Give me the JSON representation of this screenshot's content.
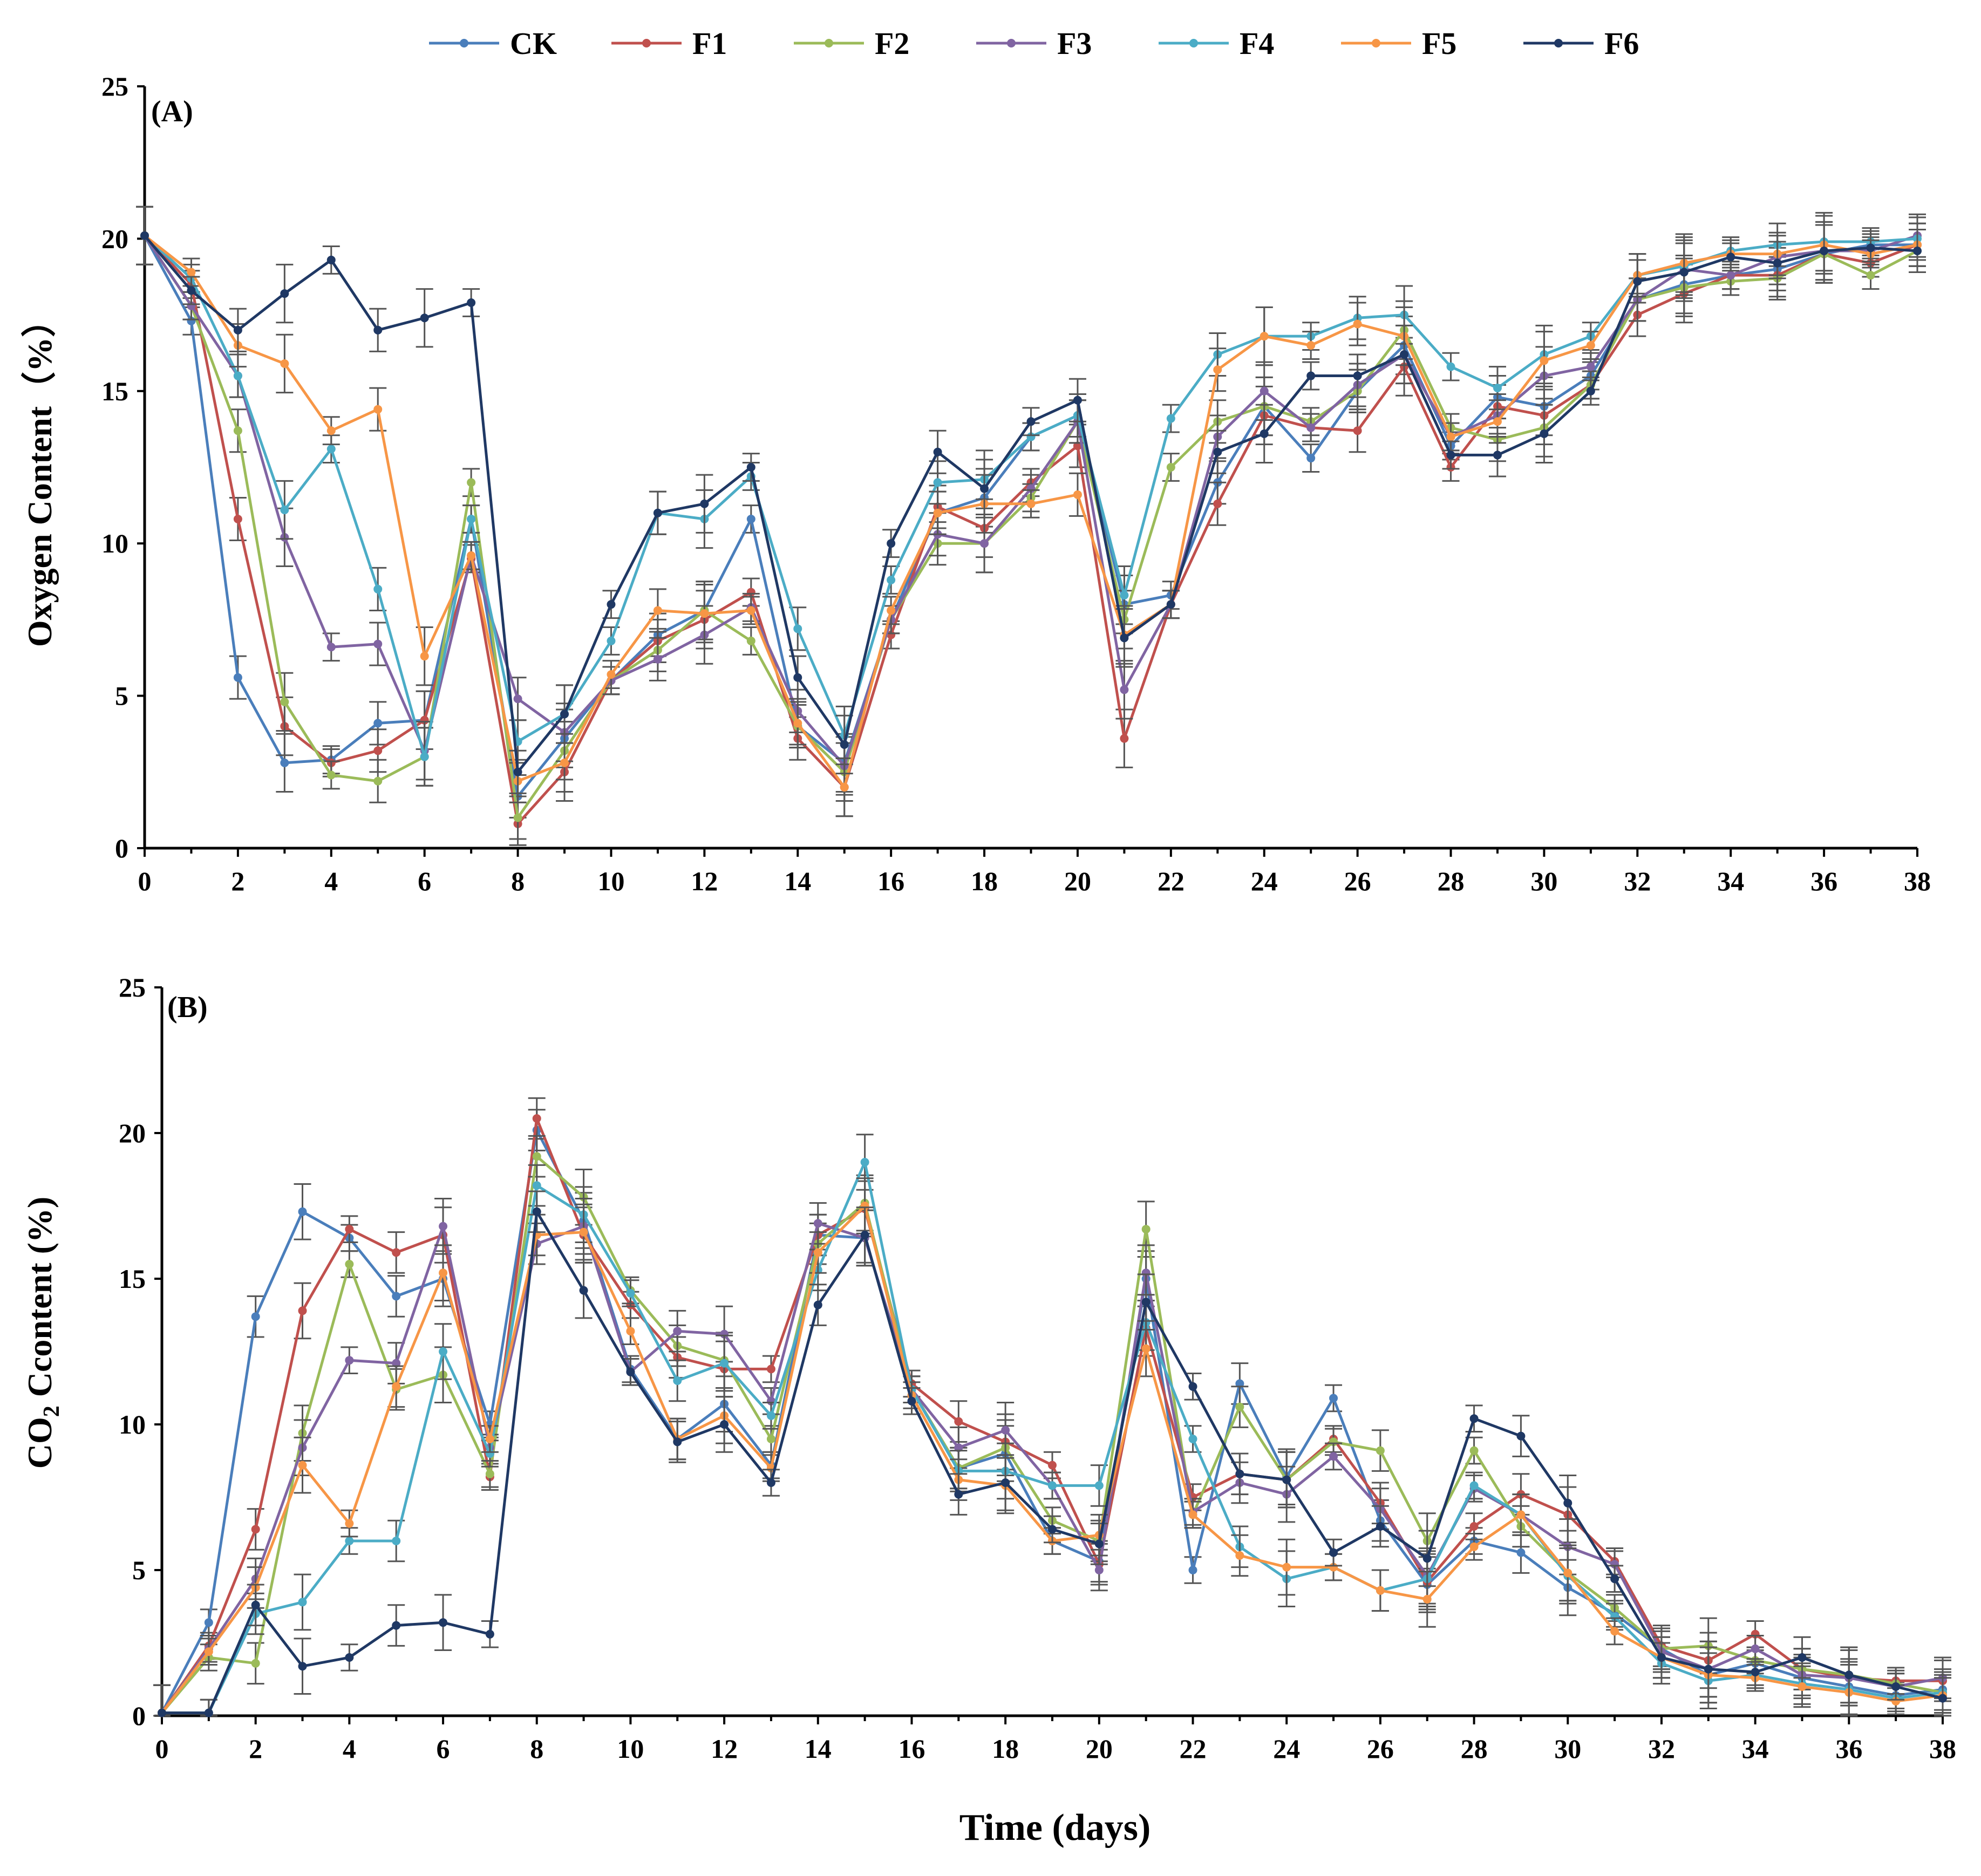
{
  "chart_data": [
    {
      "type": "line",
      "panel_label": "(A)",
      "ylabel": "Oxygen Content（%）",
      "xlabel": "",
      "xlim": [
        0,
        38
      ],
      "ylim": [
        0,
        25
      ],
      "x_ticks": [
        0,
        2,
        4,
        6,
        8,
        10,
        12,
        14,
        16,
        18,
        20,
        22,
        24,
        26,
        28,
        30,
        32,
        34,
        36,
        38
      ],
      "y_ticks": [
        0,
        5,
        10,
        15,
        20,
        25
      ],
      "x": [
        0,
        1,
        2,
        3,
        4,
        5,
        6,
        7,
        8,
        9,
        10,
        11,
        12,
        13,
        14,
        15,
        16,
        17,
        18,
        19,
        20,
        21,
        22,
        23,
        24,
        25,
        26,
        27,
        28,
        29,
        30,
        31,
        32,
        33,
        34,
        35,
        36,
        37,
        38
      ],
      "series": [
        {
          "name": "CK",
          "values": [
            20.1,
            17.3,
            5.6,
            2.8,
            2.9,
            4.1,
            4.2,
            10.8,
            1.7,
            3.6,
            5.5,
            7.0,
            7.8,
            10.8,
            4.0,
            2.8,
            7.5,
            11.0,
            11.5,
            13.5,
            14.2,
            8.0,
            8.3,
            12.0,
            14.5,
            12.8,
            15.0,
            16.5,
            13.2,
            14.8,
            14.5,
            15.5,
            18.0,
            18.5,
            18.8,
            19.0,
            19.5,
            19.8,
            19.8
          ]
        },
        {
          "name": "F1",
          "values": [
            20.1,
            18.5,
            10.8,
            4.0,
            2.8,
            3.2,
            4.2,
            9.5,
            0.8,
            2.5,
            5.5,
            6.8,
            7.5,
            8.4,
            3.6,
            2.0,
            7.0,
            11.2,
            10.5,
            12.0,
            13.2,
            3.6,
            8.0,
            11.3,
            14.2,
            13.8,
            13.7,
            15.8,
            12.5,
            14.5,
            14.2,
            15.2,
            17.5,
            18.2,
            18.8,
            18.8,
            19.5,
            19.2,
            19.8
          ]
        },
        {
          "name": "F2",
          "values": [
            20.1,
            17.8,
            13.7,
            4.8,
            2.4,
            2.2,
            3.0,
            12.0,
            1.0,
            3.2,
            5.5,
            6.5,
            7.8,
            6.8,
            4.0,
            2.5,
            7.5,
            10.0,
            10.0,
            11.5,
            14.0,
            7.5,
            12.5,
            14.0,
            14.5,
            14.0,
            15.0,
            17.0,
            13.8,
            13.4,
            13.8,
            15.2,
            18.0,
            18.4,
            18.6,
            18.7,
            19.5,
            18.8,
            19.6
          ]
        },
        {
          "name": "F3",
          "values": [
            20.1,
            17.8,
            15.5,
            10.2,
            6.6,
            6.7,
            3.2,
            9.6,
            4.9,
            3.8,
            5.5,
            6.2,
            7.0,
            7.9,
            4.5,
            2.7,
            7.5,
            10.3,
            10.0,
            11.8,
            14.0,
            5.2,
            8.0,
            13.5,
            15.0,
            13.8,
            15.2,
            16.2,
            13.5,
            14.2,
            15.5,
            15.8,
            18.0,
            19.0,
            18.8,
            19.4,
            19.6,
            19.6,
            20.1
          ]
        },
        {
          "name": "F4",
          "values": [
            20.1,
            18.7,
            15.5,
            11.1,
            13.1,
            8.5,
            3.0,
            10.8,
            3.5,
            4.4,
            6.8,
            11.0,
            10.8,
            12.2,
            7.2,
            3.7,
            8.8,
            12.0,
            12.1,
            13.5,
            14.2,
            8.3,
            14.1,
            16.2,
            16.8,
            16.8,
            17.4,
            17.5,
            15.8,
            15.1,
            16.2,
            16.8,
            18.8,
            19.1,
            19.6,
            19.8,
            19.9,
            19.9,
            20.0
          ]
        },
        {
          "name": "F5",
          "values": [
            20.1,
            18.9,
            16.5,
            15.9,
            13.7,
            14.4,
            6.3,
            9.6,
            2.2,
            2.8,
            5.7,
            7.8,
            7.7,
            7.8,
            4.1,
            2.0,
            7.8,
            11.0,
            11.3,
            11.3,
            11.6,
            7.0,
            8.0,
            15.7,
            16.8,
            16.5,
            17.2,
            16.8,
            13.5,
            14.0,
            16.0,
            16.5,
            18.8,
            19.2,
            19.5,
            19.5,
            19.8,
            19.5,
            19.8
          ]
        },
        {
          "name": "F6",
          "values": [
            20.1,
            18.3,
            17.0,
            18.2,
            19.3,
            17.0,
            17.4,
            17.9,
            2.5,
            4.4,
            8.0,
            11.0,
            11.3,
            12.5,
            5.6,
            3.4,
            10.0,
            13.0,
            11.8,
            14.0,
            14.7,
            6.9,
            8.0,
            13.0,
            13.6,
            15.5,
            15.5,
            16.2,
            12.9,
            12.9,
            13.6,
            15.0,
            18.6,
            18.9,
            19.4,
            19.2,
            19.6,
            19.7,
            19.6
          ]
        }
      ]
    },
    {
      "type": "line",
      "panel_label": "(B)",
      "ylabel_main": "CO",
      "ylabel_sub": "2",
      "ylabel_rest": " Ccontent  (%)",
      "xlabel": "Time (days)",
      "xlim": [
        0,
        38
      ],
      "ylim": [
        0,
        25
      ],
      "x_ticks": [
        0,
        2,
        4,
        6,
        8,
        10,
        12,
        14,
        16,
        18,
        20,
        22,
        24,
        26,
        28,
        30,
        32,
        34,
        36,
        38
      ],
      "y_ticks": [
        0,
        5,
        10,
        15,
        20,
        25
      ],
      "x": [
        0,
        1,
        2,
        3,
        4,
        5,
        6,
        7,
        8,
        9,
        10,
        11,
        12,
        13,
        14,
        15,
        16,
        17,
        18,
        19,
        20,
        21,
        22,
        23,
        24,
        25,
        26,
        27,
        28,
        29,
        30,
        31,
        32,
        33,
        34,
        35,
        36,
        37,
        38
      ],
      "series": [
        {
          "name": "CK",
          "values": [
            0.1,
            3.2,
            13.7,
            17.3,
            16.4,
            14.4,
            15.0,
            10.0,
            20.1,
            17.0,
            11.9,
            9.5,
            10.7,
            8.6,
            16.5,
            16.4,
            11.2,
            8.5,
            9.0,
            6.0,
            5.3,
            15.0,
            5.0,
            11.4,
            8.2,
            10.9,
            6.7,
            4.5,
            6.0,
            5.6,
            4.4,
            3.5,
            2.3,
            1.4,
            1.8,
            1.3,
            1.0,
            0.7,
            0.9
          ]
        },
        {
          "name": "F1",
          "values": [
            0.1,
            2.4,
            6.4,
            13.9,
            16.7,
            15.9,
            16.5,
            8.2,
            20.5,
            16.5,
            14.1,
            12.3,
            11.9,
            11.9,
            16.5,
            17.4,
            11.4,
            10.1,
            9.4,
            8.6,
            5.2,
            13.3,
            7.5,
            8.3,
            8.1,
            9.5,
            7.3,
            4.6,
            6.5,
            7.6,
            6.9,
            5.3,
            2.4,
            1.9,
            2.8,
            1.6,
            1.3,
            1.2,
            1.2
          ]
        },
        {
          "name": "F2",
          "values": [
            0.1,
            2.0,
            1.8,
            9.7,
            15.5,
            11.2,
            11.7,
            8.3,
            19.2,
            17.8,
            14.6,
            12.7,
            12.2,
            9.5,
            16.2,
            17.6,
            11.2,
            8.5,
            9.2,
            6.7,
            6.0,
            16.7,
            6.9,
            10.6,
            8.1,
            9.4,
            9.1,
            6.0,
            9.1,
            6.5,
            4.9,
            3.7,
            2.3,
            2.4,
            1.9,
            1.6,
            1.4,
            1.1,
            0.8
          ]
        },
        {
          "name": "F3",
          "values": [
            0.1,
            2.3,
            4.7,
            9.2,
            12.2,
            12.1,
            16.8,
            9.2,
            16.2,
            16.8,
            11.8,
            13.2,
            13.1,
            10.8,
            16.9,
            16.4,
            11.2,
            9.2,
            9.8,
            7.9,
            5.0,
            15.2,
            7.0,
            8.0,
            7.6,
            8.9,
            7.1,
            4.8,
            7.8,
            6.9,
            5.8,
            5.2,
            2.2,
            1.6,
            2.3,
            1.4,
            1.3,
            1.0,
            1.3
          ]
        },
        {
          "name": "F4",
          "values": [
            0.1,
            0.1,
            3.5,
            3.9,
            6.0,
            6.0,
            12.5,
            9.0,
            18.2,
            17.2,
            14.5,
            11.5,
            12.1,
            10.3,
            15.3,
            19.0,
            11.2,
            8.4,
            8.4,
            7.9,
            7.9,
            13.5,
            9.5,
            5.8,
            4.7,
            5.1,
            4.3,
            4.7,
            7.9,
            6.9,
            4.8,
            3.4,
            1.8,
            1.2,
            1.4,
            1.1,
            0.9,
            0.6,
            0.8
          ]
        },
        {
          "name": "F5",
          "values": [
            0.1,
            2.2,
            4.4,
            8.6,
            6.6,
            11.3,
            15.2,
            9.5,
            16.5,
            16.6,
            13.2,
            9.5,
            10.3,
            8.5,
            15.9,
            17.5,
            11.0,
            8.1,
            7.9,
            6.0,
            6.2,
            12.6,
            6.9,
            5.5,
            5.1,
            5.1,
            4.3,
            4.0,
            5.8,
            6.9,
            4.9,
            2.9,
            2.0,
            1.4,
            1.3,
            1.0,
            0.8,
            0.5,
            0.7
          ]
        },
        {
          "name": "F6",
          "values": [
            0.1,
            0.1,
            3.8,
            1.7,
            2.0,
            3.1,
            3.2,
            2.8,
            17.3,
            14.6,
            11.8,
            9.4,
            10.0,
            8.0,
            14.1,
            16.5,
            10.8,
            7.6,
            8.0,
            6.4,
            5.9,
            14.2,
            11.3,
            8.3,
            8.1,
            5.6,
            6.5,
            5.4,
            10.2,
            9.6,
            7.3,
            4.7,
            2.0,
            1.6,
            1.5,
            2.0,
            1.4,
            1.0,
            0.6
          ]
        }
      ]
    }
  ],
  "legend": [
    {
      "name": "CK",
      "color": "#4a7ebb"
    },
    {
      "name": "F1",
      "color": "#c0504d"
    },
    {
      "name": "F2",
      "color": "#9bbb59"
    },
    {
      "name": "F3",
      "color": "#8064a2"
    },
    {
      "name": "F4",
      "color": "#4bacc6"
    },
    {
      "name": "F5",
      "color": "#f79646"
    },
    {
      "name": "F6",
      "color": "#1f3864"
    }
  ]
}
